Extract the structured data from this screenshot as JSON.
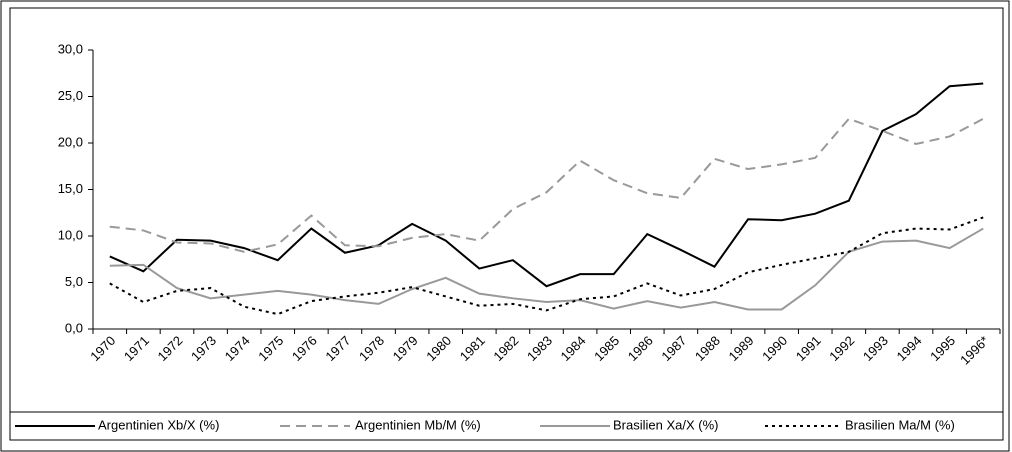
{
  "chart_data": {
    "type": "line",
    "categories": [
      "1970",
      "1971",
      "1972",
      "1973",
      "1974",
      "1975",
      "1976",
      "1977",
      "1978",
      "1979",
      "1980",
      "1981",
      "1982",
      "1983",
      "1984",
      "1985",
      "1986",
      "1987",
      "1988",
      "1989",
      "1990",
      "1991",
      "1992",
      "1993",
      "1994",
      "1995",
      "1996*"
    ],
    "series": [
      {
        "name": "Argentinien Xb/X (%)",
        "color": "#000000",
        "dash": "solid",
        "values": [
          7.8,
          6.2,
          9.6,
          9.5,
          8.7,
          7.4,
          10.8,
          8.2,
          9.0,
          11.3,
          9.5,
          6.5,
          7.4,
          4.6,
          5.9,
          5.9,
          10.2,
          8.5,
          6.7,
          11.8,
          11.7,
          12.4,
          13.8,
          21.3,
          23.1,
          26.1,
          26.4
        ]
      },
      {
        "name": "Argentinien Mb/M (%)",
        "color": "#999999",
        "dash": "dashed",
        "values": [
          11.0,
          10.6,
          9.3,
          9.2,
          8.3,
          9.1,
          12.2,
          9.0,
          8.9,
          9.8,
          10.2,
          9.5,
          12.9,
          14.7,
          18.1,
          16.0,
          14.6,
          14.1,
          18.3,
          17.2,
          17.7,
          18.4,
          22.6,
          21.3,
          19.9,
          20.7,
          22.6
        ]
      },
      {
        "name": "Brasilien Xa/X (%)",
        "color": "#999999",
        "dash": "solid",
        "values": [
          6.8,
          6.9,
          4.4,
          3.3,
          3.7,
          4.1,
          3.7,
          3.1,
          2.7,
          4.3,
          5.5,
          3.8,
          3.3,
          2.9,
          3.1,
          2.2,
          3.0,
          2.3,
          2.9,
          2.1,
          2.1,
          4.7,
          8.3,
          9.4,
          9.5,
          8.7,
          10.8
        ]
      },
      {
        "name": "Brasilien Ma/M (%)",
        "color": "#000000",
        "dash": "dotted",
        "values": [
          4.9,
          2.9,
          4.1,
          4.4,
          2.4,
          1.6,
          3.0,
          3.5,
          3.9,
          4.5,
          3.5,
          2.5,
          2.7,
          2.0,
          3.2,
          3.5,
          4.9,
          3.6,
          4.3,
          6.1,
          6.9,
          7.6,
          8.3,
          10.3,
          10.8,
          10.7,
          12.0
        ]
      }
    ],
    "ylim": [
      0,
      30
    ],
    "yticks": [
      {
        "value": 0,
        "label": "0,0"
      },
      {
        "value": 5,
        "label": "5,0"
      },
      {
        "value": 10,
        "label": "10,0"
      },
      {
        "value": 15,
        "label": "15,0"
      },
      {
        "value": 20,
        "label": "20,0"
      },
      {
        "value": 25,
        "label": "25,0"
      },
      {
        "value": 30,
        "label": "30,0"
      }
    ],
    "legend": "bottom"
  }
}
